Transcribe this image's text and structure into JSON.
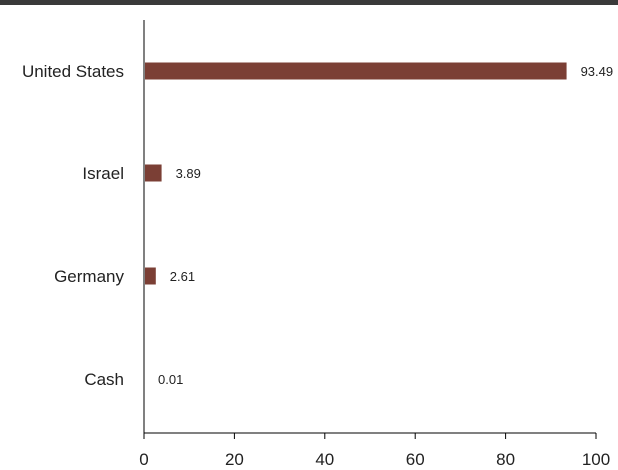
{
  "chart_data": {
    "type": "bar",
    "orientation": "horizontal",
    "categories": [
      "United States",
      "Israel",
      "Germany",
      "Cash"
    ],
    "values": [
      93.49,
      3.89,
      2.61,
      0.01
    ],
    "value_labels": [
      "93.49",
      "3.89",
      "2.61",
      "0.01"
    ],
    "xlim": [
      0,
      100
    ],
    "x_ticks": [
      0,
      20,
      40,
      60,
      80,
      100
    ],
    "title": "",
    "xlabel": "",
    "ylabel": "",
    "grid": false,
    "legend": "none",
    "bar_color": "#7b3f35"
  }
}
